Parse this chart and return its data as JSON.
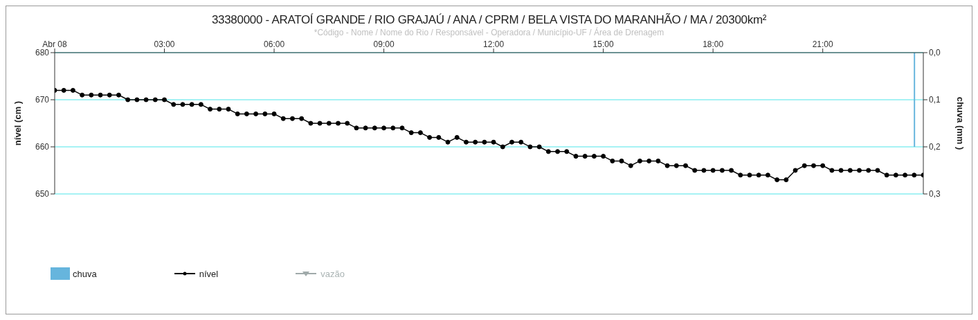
{
  "chart_data": {
    "type": "line",
    "title": "33380000 - ARATOÍ GRANDE / RIO GRAJAÚ / ANA / CPRM / BELA VISTA DO MARANHÃO / MA / 20300km²",
    "subtitle": "*Código - Nome / Nome do Rio / Responsável - Operadora / Município-UF / Área de Drenagem",
    "ylabel": "nível (cm )",
    "y2label": "chuva (mm )",
    "x": [
      0,
      0.25,
      0.5,
      0.75,
      1,
      1.25,
      1.5,
      1.75,
      2,
      2.25,
      2.5,
      2.75,
      3,
      3.25,
      3.5,
      3.75,
      4,
      4.25,
      4.5,
      4.75,
      5,
      5.25,
      5.5,
      5.75,
      6,
      6.25,
      6.5,
      6.75,
      7,
      7.25,
      7.5,
      7.75,
      8,
      8.25,
      8.5,
      8.75,
      9,
      9.25,
      9.5,
      9.75,
      10,
      10.25,
      10.5,
      10.75,
      11,
      11.25,
      11.5,
      11.75,
      12,
      12.25,
      12.5,
      12.75,
      13,
      13.25,
      13.5,
      13.75,
      14,
      14.25,
      14.5,
      14.75,
      15,
      15.25,
      15.5,
      15.75,
      16,
      16.25,
      16.5,
      16.75,
      17,
      17.25,
      17.5,
      17.75,
      18,
      18.25,
      18.5,
      18.75,
      19,
      19.25,
      19.5,
      19.75,
      20,
      20.25,
      20.5,
      20.75,
      21,
      21.25,
      21.5,
      21.75,
      22,
      22.25,
      22.5,
      22.75,
      23,
      23.25,
      23.5,
      23.75
    ],
    "series": [
      {
        "name": "chuva",
        "type": "bar",
        "axis": "y2",
        "color": "#66b5dd",
        "values": [
          null,
          null,
          null,
          null,
          null,
          null,
          null,
          null,
          null,
          null,
          null,
          null,
          null,
          null,
          null,
          null,
          null,
          null,
          null,
          null,
          null,
          null,
          null,
          null,
          null,
          null,
          null,
          null,
          null,
          null,
          null,
          null,
          null,
          null,
          null,
          null,
          null,
          null,
          null,
          null,
          null,
          null,
          null,
          null,
          null,
          null,
          null,
          null,
          null,
          null,
          null,
          null,
          null,
          null,
          null,
          null,
          null,
          null,
          null,
          null,
          null,
          null,
          null,
          null,
          null,
          null,
          null,
          null,
          null,
          null,
          null,
          null,
          null,
          null,
          null,
          null,
          null,
          null,
          null,
          null,
          null,
          null,
          null,
          null,
          null,
          null,
          null,
          null,
          null,
          null,
          null,
          null,
          null,
          null,
          0.2,
          null
        ]
      },
      {
        "name": "nível",
        "color": "#000000",
        "marker": "circle",
        "values": [
          672,
          672,
          672,
          671,
          671,
          671,
          671,
          671,
          670,
          670,
          670,
          670,
          670,
          669,
          669,
          669,
          669,
          668,
          668,
          668,
          667,
          667,
          667,
          667,
          667,
          666,
          666,
          666,
          665,
          665,
          665,
          665,
          665,
          664,
          664,
          664,
          664,
          664,
          664,
          663,
          663,
          662,
          662,
          661,
          662,
          661,
          661,
          661,
          661,
          660,
          661,
          661,
          660,
          660,
          659,
          659,
          659,
          658,
          658,
          658,
          658,
          657,
          657,
          656,
          657,
          657,
          657,
          656,
          656,
          656,
          655,
          655,
          655,
          655,
          655,
          654,
          654,
          654,
          654,
          653,
          653,
          655,
          656,
          656,
          656,
          655,
          655,
          655,
          655,
          655,
          655,
          654,
          654,
          654,
          654,
          654
        ]
      },
      {
        "name": "vazão",
        "color": "#a0aaaa",
        "marker": "triangle",
        "values": [
          null,
          null,
          null,
          null,
          null,
          null,
          null,
          null,
          null,
          null,
          null,
          null,
          null,
          null,
          null,
          null,
          null,
          null,
          null,
          null,
          null,
          null,
          null,
          null,
          null,
          null,
          null,
          null,
          null,
          null,
          null,
          null,
          null,
          null,
          null,
          null,
          null,
          null,
          null,
          null,
          null,
          null,
          null,
          null,
          null,
          null,
          null,
          null,
          null,
          null,
          null,
          null,
          null,
          null,
          null,
          null,
          null,
          null,
          null,
          null,
          null,
          null,
          null,
          null,
          null,
          null,
          null,
          null,
          null,
          null,
          null,
          null,
          null,
          null,
          null,
          null,
          null,
          null,
          null,
          null,
          null,
          null,
          null,
          null,
          null,
          null,
          null,
          null,
          null,
          null,
          null,
          null,
          null,
          null,
          null,
          null
        ]
      }
    ],
    "xlim": [
      0,
      23.75
    ],
    "xticks": [
      {
        "value": 0,
        "label": "Abr 08"
      },
      {
        "value": 3,
        "label": "03:00"
      },
      {
        "value": 6,
        "label": "06:00"
      },
      {
        "value": 9,
        "label": "09:00"
      },
      {
        "value": 12,
        "label": "12:00"
      },
      {
        "value": 15,
        "label": "15:00"
      },
      {
        "value": 18,
        "label": "18:00"
      },
      {
        "value": 21,
        "label": "21:00"
      }
    ],
    "ylim": [
      650,
      680
    ],
    "yticks": [
      650,
      660,
      670,
      680
    ],
    "y2lim": [
      0.3,
      0
    ],
    "y2ticks": [
      {
        "value": 0,
        "label": "0,0"
      },
      {
        "value": 0.1,
        "label": "0,1"
      },
      {
        "value": 0.2,
        "label": "0,2"
      },
      {
        "value": 0.3,
        "label": "0,3"
      }
    ],
    "grid": "y",
    "legend": "bottom left",
    "line_style": "solid"
  }
}
